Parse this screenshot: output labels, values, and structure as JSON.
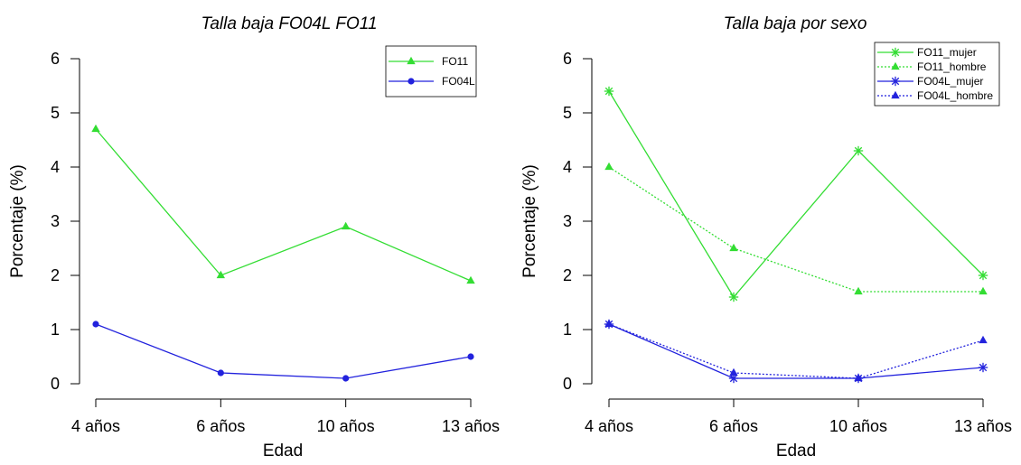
{
  "chart_data": [
    {
      "type": "line",
      "title": "Talla baja FO04L FO11",
      "xlabel": "Edad",
      "ylabel": "Porcentaje (%)",
      "categories": [
        "4 años",
        "6 años",
        "10 años",
        "13 años"
      ],
      "ylim": [
        0,
        6
      ],
      "yticks": [
        "0",
        "1",
        "2",
        "3",
        "4",
        "5",
        "6"
      ],
      "grid": false,
      "legend_position": "top-right",
      "series": [
        {
          "name": "FO11",
          "values": [
            4.7,
            2.0,
            2.9,
            1.9
          ],
          "color": "#33dd33",
          "marker": "triangle",
          "dash": "solid"
        },
        {
          "name": "FO04L",
          "values": [
            1.1,
            0.2,
            0.1,
            0.5
          ],
          "color": "#2222dd",
          "marker": "circle",
          "dash": "solid"
        }
      ]
    },
    {
      "type": "line",
      "title": "Talla baja por sexo",
      "xlabel": "Edad",
      "ylabel": "Porcentaje (%)",
      "categories": [
        "4 años",
        "6 años",
        "10 años",
        "13 años"
      ],
      "ylim": [
        0,
        6
      ],
      "yticks": [
        "0",
        "1",
        "2",
        "3",
        "4",
        "5",
        "6"
      ],
      "grid": false,
      "legend_position": "top-right",
      "series": [
        {
          "name": "FO11_mujer",
          "values": [
            5.4,
            1.6,
            4.3,
            2.0
          ],
          "color": "#33dd33",
          "marker": "asterisk",
          "dash": "solid"
        },
        {
          "name": "FO11_hombre",
          "values": [
            4.0,
            2.5,
            1.7,
            1.7
          ],
          "color": "#33dd33",
          "marker": "triangle",
          "dash": "dotted"
        },
        {
          "name": "FO04L_mujer",
          "values": [
            1.1,
            0.1,
            0.1,
            0.3
          ],
          "color": "#2222dd",
          "marker": "asterisk",
          "dash": "solid"
        },
        {
          "name": "FO04L_hombre",
          "values": [
            1.1,
            0.2,
            0.1,
            0.8
          ],
          "color": "#2222dd",
          "marker": "triangle",
          "dash": "dotted"
        }
      ]
    }
  ]
}
